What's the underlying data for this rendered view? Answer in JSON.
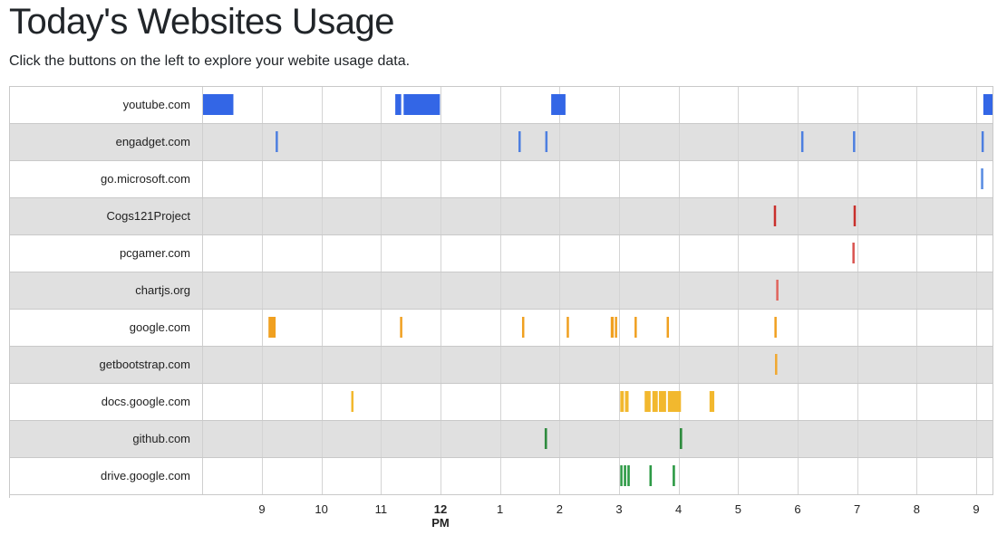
{
  "header": {
    "title": "Today's Websites Usage",
    "subtitle": "Click the buttons on the left to explore your webite usage data."
  },
  "chart_data": {
    "type": "timeline",
    "x_unit": "hour of day (24h clock)",
    "x_range": [
      8.0,
      21.3
    ],
    "ticks": [
      {
        "value": 9,
        "label": "9"
      },
      {
        "value": 10,
        "label": "10"
      },
      {
        "value": 11,
        "label": "11"
      },
      {
        "value": 12,
        "label": "12",
        "sublabel": "PM",
        "bold": true
      },
      {
        "value": 13,
        "label": "1"
      },
      {
        "value": 14,
        "label": "2"
      },
      {
        "value": 15,
        "label": "3"
      },
      {
        "value": 16,
        "label": "4"
      },
      {
        "value": 17,
        "label": "5"
      },
      {
        "value": 18,
        "label": "6"
      },
      {
        "value": 19,
        "label": "7"
      },
      {
        "value": 20,
        "label": "8"
      },
      {
        "value": 21,
        "label": "9"
      }
    ],
    "row_colors": [
      "#ffffff",
      "#e0e0e0"
    ],
    "rows": [
      {
        "label": "youtube.com",
        "color": "#3366e6",
        "intervals": [
          [
            8.0,
            8.52
          ],
          [
            11.24,
            11.34
          ],
          [
            11.38,
            11.99
          ],
          [
            13.86,
            14.1
          ],
          [
            21.12,
            21.3
          ]
        ]
      },
      {
        "label": "engadget.com",
        "color": "#4d7fe0",
        "intervals": [
          [
            9.23,
            9.26
          ],
          [
            13.31,
            13.34
          ],
          [
            13.76,
            13.79
          ],
          [
            18.06,
            18.09
          ],
          [
            18.93,
            18.96
          ],
          [
            21.09,
            21.12
          ]
        ]
      },
      {
        "label": "go.microsoft.com",
        "color": "#5e8fe3",
        "intervals": [
          [
            21.08,
            21.12
          ]
        ]
      },
      {
        "label": "Cogs121Project",
        "color": "#c9302c",
        "intervals": [
          [
            17.6,
            17.63
          ],
          [
            18.94,
            18.97
          ]
        ]
      },
      {
        "label": "pcgamer.com",
        "color": "#d9534f",
        "intervals": [
          [
            18.92,
            18.95
          ]
        ]
      },
      {
        "label": "chartjs.org",
        "color": "#e0645c",
        "intervals": [
          [
            17.64,
            17.67
          ]
        ]
      },
      {
        "label": "google.com",
        "color": "#f0a020",
        "intervals": [
          [
            9.11,
            9.23
          ],
          [
            11.32,
            11.35
          ],
          [
            13.37,
            13.4
          ],
          [
            14.12,
            14.15
          ],
          [
            14.86,
            14.91
          ],
          [
            14.93,
            14.96
          ],
          [
            15.26,
            15.29
          ],
          [
            15.8,
            15.83
          ],
          [
            17.61,
            17.64
          ]
        ]
      },
      {
        "label": "getbootstrap.com",
        "color": "#f0a830",
        "intervals": [
          [
            17.62,
            17.65
          ]
        ]
      },
      {
        "label": "docs.google.com",
        "color": "#f2b82e",
        "intervals": [
          [
            10.5,
            10.53
          ],
          [
            15.02,
            15.08
          ],
          [
            15.1,
            15.16
          ],
          [
            15.43,
            15.53
          ],
          [
            15.56,
            15.65
          ],
          [
            15.67,
            15.79
          ],
          [
            15.82,
            16.04
          ],
          [
            16.52,
            16.6
          ]
        ]
      },
      {
        "label": "github.com",
        "color": "#2e8b3e",
        "intervals": [
          [
            13.75,
            13.79
          ],
          [
            16.02,
            16.06
          ]
        ]
      },
      {
        "label": "drive.google.com",
        "color": "#2e9a46",
        "intervals": [
          [
            15.02,
            15.05
          ],
          [
            15.08,
            15.12
          ],
          [
            15.14,
            15.18
          ],
          [
            15.51,
            15.55
          ],
          [
            15.9,
            15.94
          ]
        ]
      }
    ]
  }
}
